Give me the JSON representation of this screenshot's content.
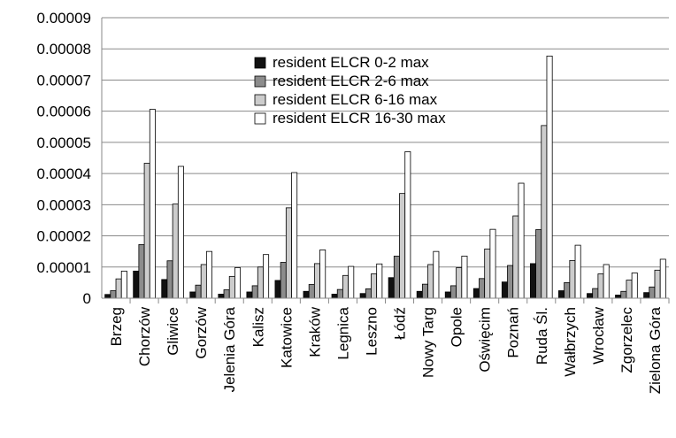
{
  "chart_data": {
    "type": "bar",
    "title": "",
    "xlabel": "",
    "ylabel": "",
    "ylim": [
      0,
      9e-05
    ],
    "yticks": [
      "0",
      "0.00001",
      "0.00002",
      "0.00003",
      "0.00004",
      "0.00005",
      "0.00006",
      "0.00007",
      "0.00008",
      "0.00009"
    ],
    "grid": true,
    "legend_position": "top-center",
    "categories": [
      "Brzeg",
      "Chorzów",
      "Gliwice",
      "Gorzów",
      "Jelenia Góra",
      "Kalisz",
      "Katowice",
      "Kraków",
      "Legnica",
      "Leszno",
      "Łódź",
      "Nowy Targ",
      "Opole",
      "Oświęcim",
      "Poznań",
      "Ruda Śl.",
      "Wałbrzych",
      "Wrocław",
      "Zgorzelec",
      "Zielona Góra"
    ],
    "series": [
      {
        "name": "resident ELCR 0-2 max",
        "color": "#111111",
        "values": [
          1.2e-06,
          8.7e-06,
          6e-06,
          2e-06,
          1.3e-06,
          2e-06,
          5.7e-06,
          2.2e-06,
          1.3e-06,
          1.5e-06,
          6.6e-06,
          2.2e-06,
          2e-06,
          3.1e-06,
          5.2e-06,
          1.11e-05,
          2.4e-06,
          1.5e-06,
          1e-06,
          1.8e-06
        ]
      },
      {
        "name": "resident ELCR 2-6 max",
        "color": "#8c8c8c",
        "values": [
          2.4e-06,
          1.72e-05,
          1.2e-05,
          4.2e-06,
          2.7e-06,
          4e-06,
          1.15e-05,
          4.4e-06,
          2.8e-06,
          3e-06,
          1.35e-05,
          4.5e-06,
          4e-06,
          6.3e-06,
          1.05e-05,
          2.2e-05,
          5e-06,
          3.1e-06,
          2.2e-06,
          3.6e-06
        ]
      },
      {
        "name": "resident ELCR 6-16 max",
        "color": "#cccccc",
        "values": [
          6.2e-06,
          4.33e-05,
          3.02e-05,
          1.08e-05,
          7e-06,
          1e-05,
          2.9e-05,
          1.11e-05,
          7.3e-06,
          7.8e-06,
          3.36e-05,
          1.08e-05,
          9.8e-06,
          1.58e-05,
          2.64e-05,
          5.54e-05,
          1.21e-05,
          7.8e-06,
          5.8e-06,
          9e-06
        ]
      },
      {
        "name": "resident ELCR 16-30 max",
        "color": "#ffffff",
        "values": [
          8.7e-06,
          6.06e-05,
          4.23e-05,
          1.5e-05,
          9.8e-06,
          1.4e-05,
          4.03e-05,
          1.55e-05,
          1.02e-05,
          1.1e-05,
          4.7e-05,
          1.5e-05,
          1.35e-05,
          2.21e-05,
          3.69e-05,
          7.77e-05,
          1.7e-05,
          1.08e-05,
          8.1e-06,
          1.25e-05
        ]
      }
    ]
  }
}
